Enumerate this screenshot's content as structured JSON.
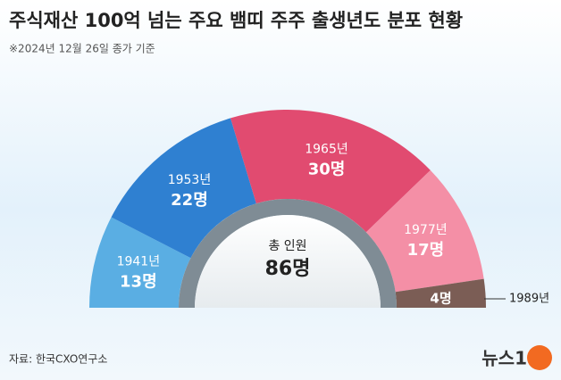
{
  "chart_data": {
    "type": "half-donut",
    "title": "주식재산 100억 넘는 주요 뱀띠 주주 출생년도 분포 현황",
    "subtitle": "※2024년 12월 26일 종가 기준",
    "categories": [
      "1941년",
      "1953년",
      "1965년",
      "1977년",
      "1989년"
    ],
    "values": [
      13,
      22,
      30,
      17,
      4
    ],
    "value_labels": [
      "13명",
      "22명",
      "30명",
      "17명",
      "4명"
    ],
    "colors": [
      "#5aaee3",
      "#2f80d1",
      "#e14b70",
      "#f48fa6",
      "#7b5d55"
    ],
    "center_label": "총 인원",
    "center_value": "86명",
    "source": "자료: 한국CXO연구소",
    "logo": "뉴스1"
  }
}
